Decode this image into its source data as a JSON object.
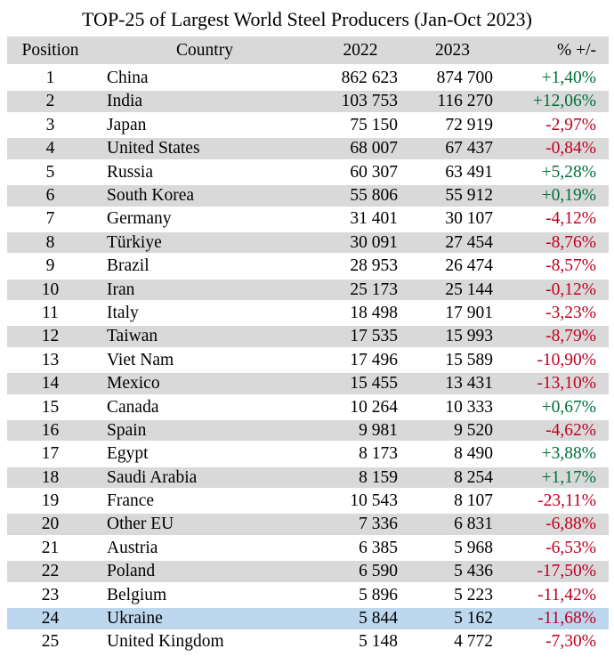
{
  "title": "TOP-25 of Largest World Steel Producers (Jan-Oct 2023)",
  "colors": {
    "positive_change_text": "#00703a",
    "negative_change_text": "#c00021",
    "header_and_stripe_background": "#d9d9d9",
    "highlight_row_background": "#bdd7ee",
    "body_text": "#000000",
    "page_background": "#ffffff"
  },
  "chart_data": {
    "type": "table",
    "title": "TOP-25 of Largest World Steel Producers (Jan-Oct 2023)",
    "columns": [
      "Position",
      "Country",
      "2022",
      "2023",
      "% +/-"
    ],
    "rows": [
      [
        "1",
        "China",
        "862 623",
        "874 700",
        "+1,40%"
      ],
      [
        "2",
        "India",
        "103 753",
        "116 270",
        "+12,06%"
      ],
      [
        "3",
        "Japan",
        "75 150",
        "72 919",
        "-2,97%"
      ],
      [
        "4",
        "United States",
        "68 007",
        "67 437",
        "-0,84%"
      ],
      [
        "5",
        "Russia",
        "60 307",
        "63 491",
        "+5,28%"
      ],
      [
        "6",
        "South Korea",
        "55 806",
        "55 912",
        "+0,19%"
      ],
      [
        "7",
        "Germany",
        "31 401",
        "30 107",
        "-4,12%"
      ],
      [
        "8",
        "Türkiye",
        "30 091",
        "27 454",
        "-8,76%"
      ],
      [
        "9",
        "Brazil",
        "28 953",
        "26 474",
        "-8,57%"
      ],
      [
        "10",
        "Iran",
        "25 173",
        "25 144",
        "-0,12%"
      ],
      [
        "11",
        "Italy",
        "18 498",
        "17 901",
        "-3,23%"
      ],
      [
        "12",
        "Taiwan",
        "17 535",
        "15 993",
        "-8,79%"
      ],
      [
        "13",
        "Viet Nam",
        "17 496",
        "15 589",
        "-10,90%"
      ],
      [
        "14",
        "Mexico",
        "15 455",
        "13 431",
        "-13,10%"
      ],
      [
        "15",
        "Canada",
        "10 264",
        "10 333",
        "+0,67%"
      ],
      [
        "16",
        "Spain",
        "9 981",
        "9 520",
        "-4,62%"
      ],
      [
        "17",
        "Egypt",
        "8 173",
        "8 490",
        "+3,88%"
      ],
      [
        "18",
        "Saudi Arabia",
        "8 159",
        "8 254",
        "+1,17%"
      ],
      [
        "19",
        "France",
        "10 543",
        "8 107",
        "-23,11%"
      ],
      [
        "20",
        "Other EU",
        "7 336",
        "6 831",
        "-6,88%"
      ],
      [
        "21",
        "Austria",
        "6 385",
        "5 968",
        "-6,53%"
      ],
      [
        "22",
        "Poland",
        "6 590",
        "5 436",
        "-17,50%"
      ],
      [
        "23",
        "Belgium",
        "5 896",
        "5 223",
        "-11,42%"
      ],
      [
        "24",
        "Ukraine",
        "5 844",
        "5 162",
        "-11,68%"
      ],
      [
        "25",
        "United Kingdom",
        "5 148",
        "4 772",
        "-7,30%"
      ]
    ],
    "highlighted_position": "24",
    "striping": "even rows shaded",
    "legend_position": "none",
    "grid": false
  }
}
